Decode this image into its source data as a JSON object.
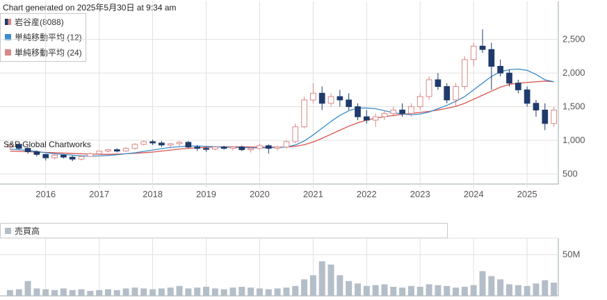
{
  "generated": "Chart generated on 2025年5月30日 at 9:34 am",
  "watermark": "S&P Global Chartworks",
  "legend": [
    {
      "label": "岩谷産(8088)",
      "color": "#c0504d",
      "icon": "candlestick-icon"
    },
    {
      "label": "単純移動平均 (12)",
      "color": "#3a8cc8",
      "icon": "line-swatch-icon"
    },
    {
      "label": "単純移動平均 (24)",
      "color": "#d9534f",
      "icon": "line-swatch-icon"
    }
  ],
  "volume_legend": {
    "label": "売買高",
    "color": "#b4bec8"
  },
  "colors": {
    "up": "#d98888",
    "down": "#1f3a6b",
    "ma12": "#3a8cc8",
    "ma24": "#d9534f",
    "volume": "#b4bec8",
    "grid": "#e0e0e0"
  },
  "chart_data": [
    {
      "type": "candlestick",
      "title": "",
      "x": [
        "2015-04",
        "2015-06",
        "2015-08",
        "2015-10",
        "2015-12",
        "2016-02",
        "2016-04",
        "2016-06",
        "2016-08",
        "2016-10",
        "2016-12",
        "2017-02",
        "2017-04",
        "2017-06",
        "2017-08",
        "2017-10",
        "2017-12",
        "2018-02",
        "2018-04",
        "2018-06",
        "2018-08",
        "2018-10",
        "2018-12",
        "2019-02",
        "2019-04",
        "2019-06",
        "2019-08",
        "2019-10",
        "2019-12",
        "2020-02",
        "2020-04",
        "2020-06",
        "2020-08",
        "2020-10",
        "2020-12",
        "2021-02",
        "2021-04",
        "2021-06",
        "2021-08",
        "2021-10",
        "2021-12",
        "2022-02",
        "2022-04",
        "2022-06",
        "2022-08",
        "2022-10",
        "2022-12",
        "2023-02",
        "2023-04",
        "2023-06",
        "2023-08",
        "2023-10",
        "2023-12",
        "2024-02",
        "2024-04",
        "2024-06",
        "2024-08",
        "2024-10",
        "2024-12",
        "2025-02",
        "2025-04",
        "2025-05"
      ],
      "ohlc": [
        [
          900,
          960,
          860,
          940
        ],
        [
          940,
          950,
          860,
          880
        ],
        [
          880,
          900,
          800,
          830
        ],
        [
          830,
          850,
          760,
          790
        ],
        [
          790,
          800,
          700,
          740
        ],
        [
          740,
          800,
          720,
          780
        ],
        [
          780,
          790,
          730,
          750
        ],
        [
          750,
          770,
          690,
          720
        ],
        [
          720,
          780,
          700,
          760
        ],
        [
          760,
          820,
          750,
          800
        ],
        [
          800,
          850,
          790,
          840
        ],
        [
          840,
          870,
          820,
          860
        ],
        [
          860,
          880,
          820,
          840
        ],
        [
          840,
          900,
          830,
          880
        ],
        [
          880,
          960,
          860,
          940
        ],
        [
          940,
          1000,
          920,
          980
        ],
        [
          980,
          1010,
          930,
          960
        ],
        [
          960,
          990,
          900,
          930
        ],
        [
          930,
          960,
          880,
          950
        ],
        [
          950,
          990,
          910,
          970
        ],
        [
          970,
          990,
          880,
          900
        ],
        [
          900,
          930,
          840,
          880
        ],
        [
          880,
          900,
          830,
          870
        ],
        [
          870,
          910,
          850,
          900
        ],
        [
          900,
          920,
          860,
          880
        ],
        [
          880,
          910,
          850,
          900
        ],
        [
          900,
          920,
          840,
          860
        ],
        [
          860,
          900,
          820,
          880
        ],
        [
          880,
          950,
          860,
          920
        ],
        [
          920,
          940,
          800,
          880
        ],
        [
          880,
          920,
          850,
          900
        ],
        [
          900,
          1000,
          880,
          980
        ],
        [
          980,
          1250,
          960,
          1200
        ],
        [
          1200,
          1650,
          1180,
          1600
        ],
        [
          1600,
          1850,
          1550,
          1700
        ],
        [
          1700,
          1800,
          1450,
          1550
        ],
        [
          1550,
          1700,
          1500,
          1650
        ],
        [
          1650,
          1750,
          1500,
          1600
        ],
        [
          1600,
          1700,
          1450,
          1500
        ],
        [
          1500,
          1550,
          1300,
          1350
        ],
        [
          1350,
          1450,
          1250,
          1300
        ],
        [
          1300,
          1400,
          1200,
          1350
        ],
        [
          1350,
          1450,
          1300,
          1400
        ],
        [
          1400,
          1500,
          1350,
          1450
        ],
        [
          1450,
          1550,
          1350,
          1400
        ],
        [
          1400,
          1550,
          1350,
          1500
        ],
        [
          1500,
          1700,
          1450,
          1650
        ],
        [
          1650,
          1950,
          1600,
          1900
        ],
        [
          1900,
          2000,
          1750,
          1800
        ],
        [
          1800,
          1850,
          1550,
          1600
        ],
        [
          1600,
          1850,
          1500,
          1800
        ],
        [
          1800,
          2250,
          1750,
          2200
        ],
        [
          2200,
          2450,
          2100,
          2400
        ],
        [
          2400,
          2650,
          2300,
          2350
        ],
        [
          2350,
          2450,
          1750,
          2100
        ],
        [
          2100,
          2200,
          1950,
          2000
        ],
        [
          2000,
          2050,
          1800,
          1850
        ],
        [
          1850,
          1900,
          1700,
          1750
        ],
        [
          1750,
          1800,
          1500,
          1550
        ],
        [
          1550,
          1600,
          1350,
          1450
        ],
        [
          1450,
          1550,
          1150,
          1250
        ],
        [
          1250,
          1500,
          1200,
          1450
        ]
      ],
      "ma12": [
        870,
        860,
        850,
        835,
        815,
        800,
        790,
        780,
        770,
        765,
        768,
        775,
        785,
        800,
        815,
        835,
        855,
        875,
        895,
        905,
        915,
        915,
        910,
        905,
        900,
        895,
        892,
        888,
        888,
        890,
        893,
        900,
        930,
        990,
        1080,
        1180,
        1280,
        1370,
        1440,
        1480,
        1480,
        1470,
        1440,
        1410,
        1390,
        1380,
        1390,
        1420,
        1470,
        1520,
        1580,
        1650,
        1750,
        1850,
        1950,
        2020,
        2050,
        2060,
        2040,
        1980,
        1900,
        1870
      ],
      "ma24": [
        840,
        835,
        830,
        825,
        820,
        815,
        810,
        805,
        800,
        795,
        793,
        792,
        795,
        800,
        807,
        815,
        825,
        840,
        855,
        870,
        880,
        888,
        895,
        900,
        903,
        904,
        903,
        901,
        900,
        899,
        898,
        900,
        910,
        935,
        975,
        1030,
        1090,
        1150,
        1210,
        1260,
        1300,
        1330,
        1350,
        1370,
        1385,
        1400,
        1415,
        1430,
        1450,
        1475,
        1505,
        1550,
        1610,
        1670,
        1730,
        1790,
        1830,
        1850,
        1860,
        1870,
        1880,
        1870
      ],
      "volume_M": [
        7,
        8,
        18,
        9,
        8,
        7,
        9,
        7,
        8,
        6,
        7,
        8,
        7,
        9,
        10,
        9,
        8,
        9,
        10,
        12,
        9,
        10,
        11,
        9,
        8,
        10,
        11,
        10,
        9,
        8,
        9,
        10,
        12,
        20,
        25,
        42,
        38,
        25,
        18,
        15,
        12,
        13,
        14,
        11,
        10,
        12,
        11,
        14,
        13,
        12,
        10,
        11,
        13,
        30,
        24,
        20,
        14,
        13,
        12,
        15,
        19,
        16
      ],
      "ylim": [
        350,
        2900
      ],
      "yticks": [
        "500",
        "1,000",
        "1,500",
        "2,000",
        "2,500"
      ],
      "ytick_values": [
        500,
        1000,
        1500,
        2000,
        2500
      ],
      "vol_ticks": [
        "50M"
      ],
      "vol_tick_values": [
        50
      ],
      "vol_max": 70,
      "years": [
        "2016",
        "2017",
        "2018",
        "2019",
        "2020",
        "2021",
        "2022",
        "2023",
        "2024",
        "2025"
      ],
      "year_start_index": 4.5
    }
  ]
}
